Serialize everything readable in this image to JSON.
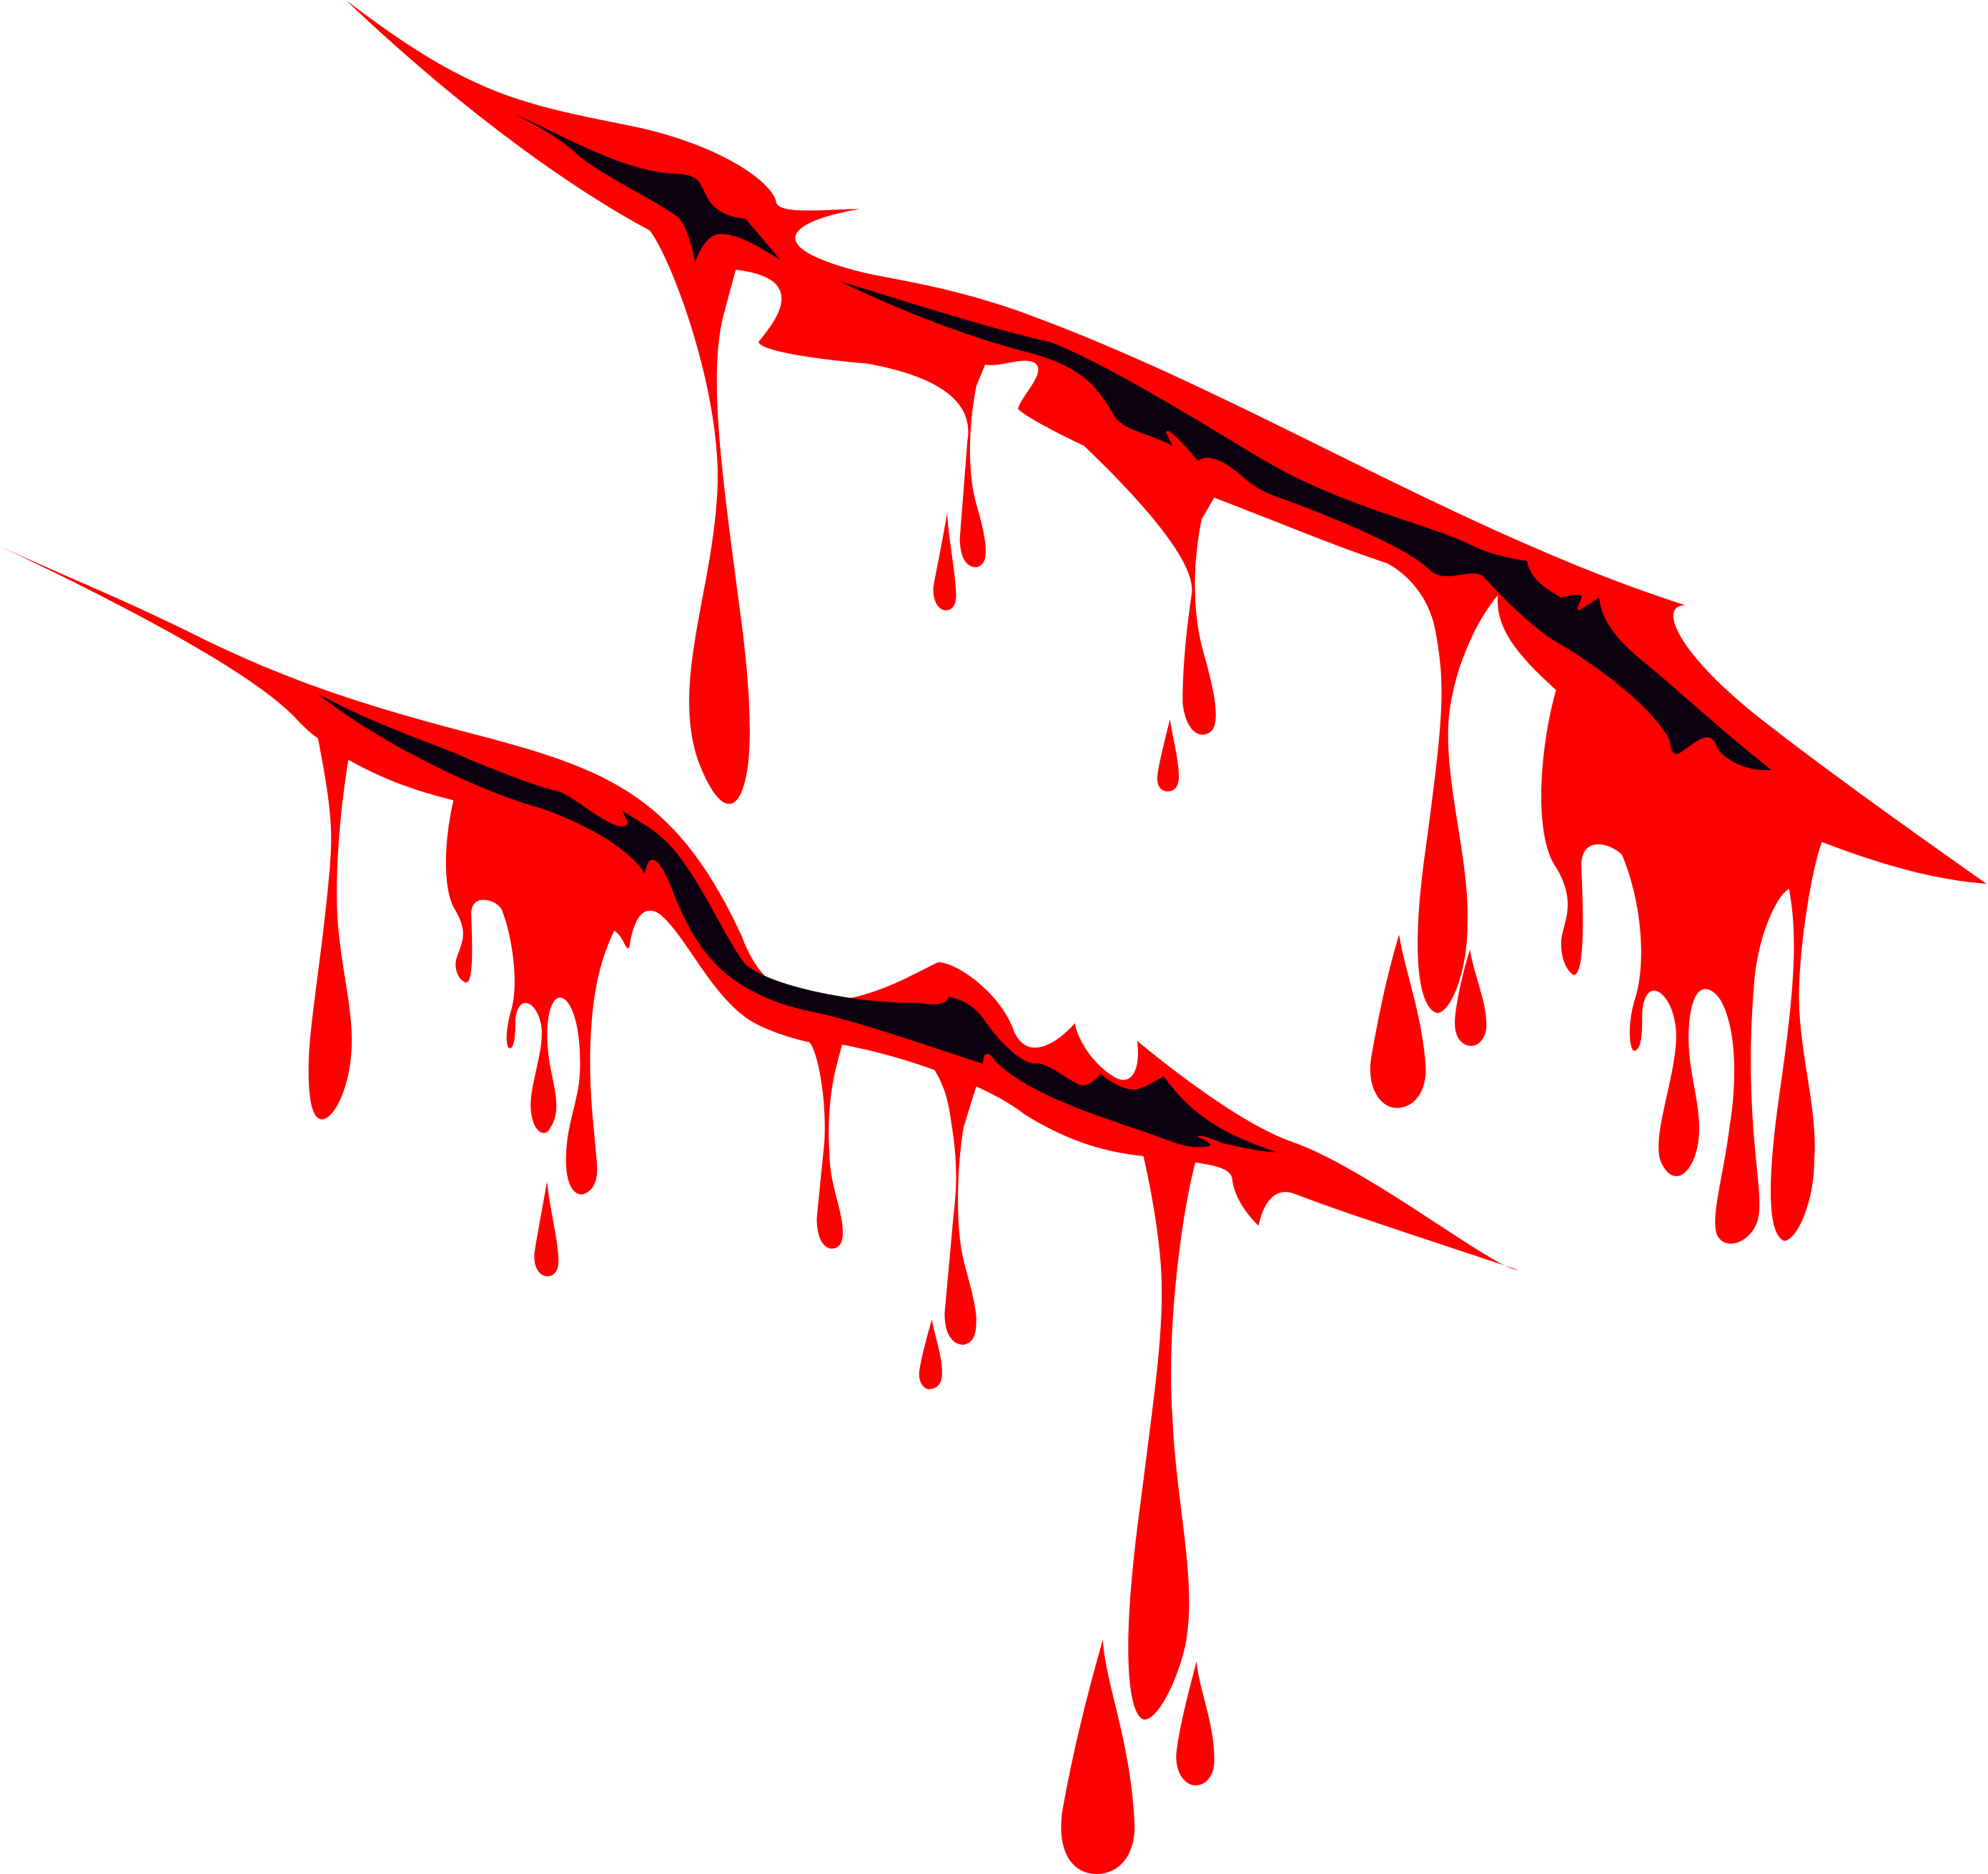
{
  "illustration": {
    "subject": "",
    "colors": {
      "blood": "#ff0000",
      "wound": "#0b0010",
      "background": "#ffffff"
    },
    "slash_count": 2,
    "drip_count": 17
  }
}
